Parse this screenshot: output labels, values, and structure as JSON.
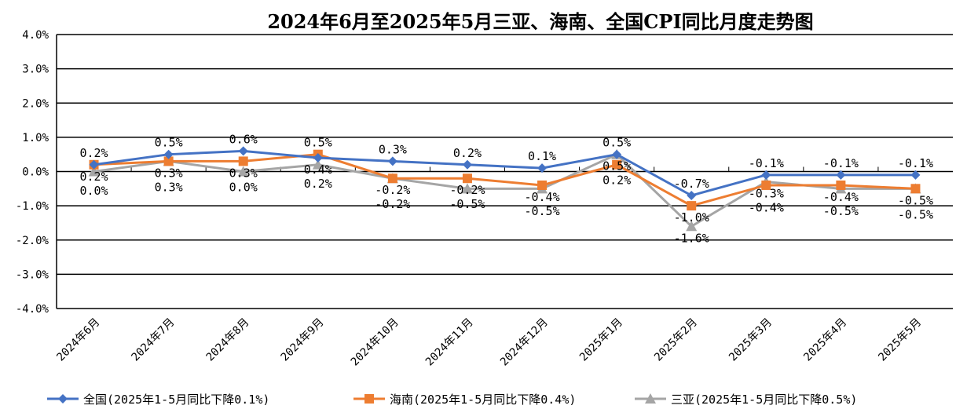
{
  "chart_data": {
    "type": "line",
    "title": "2024年6月至2025年5月三亚、海南、全国CPI同比月度走势图",
    "categories": [
      "2024年6月",
      "2024年7月",
      "2024年8月",
      "2024年9月",
      "2024年10月",
      "2024年11月",
      "2024年12月",
      "2025年1月",
      "2025年2月",
      "2025年3月",
      "2025年4月",
      "2025年5月"
    ],
    "yticks": [
      "4.0%",
      "3.0%",
      "2.0%",
      "1.0%",
      "0.0%",
      "-1.0%",
      "-2.0%",
      "-3.0%",
      "-4.0%"
    ],
    "ylim": [
      -4,
      4
    ],
    "grid": true,
    "legend_position": "bottom",
    "series": [
      {
        "name": "全国(2025年1-5月同比下降0.1%)",
        "color": "#4472C4",
        "marker": "diamond",
        "values": [
          0.2,
          0.5,
          0.6,
          0.4,
          0.3,
          0.2,
          0.1,
          0.5,
          -0.7,
          -0.1,
          -0.1,
          -0.1
        ],
        "labels": [
          "0.2%",
          "0.5%",
          "0.6%",
          "0.4%",
          "0.3%",
          "0.2%",
          "0.1%",
          "0.5%",
          "-0.7%",
          "-0.1%",
          "-0.1%",
          "-0.1%"
        ]
      },
      {
        "name": "海南(2025年1-5月同比下降0.4%)",
        "color": "#ED7D31",
        "marker": "square",
        "values": [
          0.2,
          0.3,
          0.3,
          0.5,
          -0.2,
          -0.2,
          -0.4,
          0.2,
          -1.0,
          -0.4,
          -0.4,
          -0.5
        ],
        "labels": [
          "0.2%",
          "0.3%",
          "0.3%",
          "0.5%",
          "-0.2%",
          "-0.2%",
          "-0.4%",
          "0.2%",
          "-1.0%",
          "-0.4%",
          "-0.4%",
          "-0.5%"
        ]
      },
      {
        "name": "三亚(2025年1-5月同比下降0.5%)",
        "color": "#A5A5A5",
        "marker": "triangle",
        "values": [
          0.0,
          0.3,
          0.0,
          0.2,
          -0.2,
          -0.5,
          -0.5,
          0.5,
          -1.6,
          -0.3,
          -0.5,
          -0.5
        ],
        "labels": [
          "0.0%",
          "0.3%",
          "0.0%",
          "0.2%",
          "-0.2%",
          "-0.5%",
          "-0.5%",
          "0.5%",
          "-1.6%",
          "-0.3%",
          "-0.5%",
          "-0.5%"
        ]
      }
    ]
  }
}
